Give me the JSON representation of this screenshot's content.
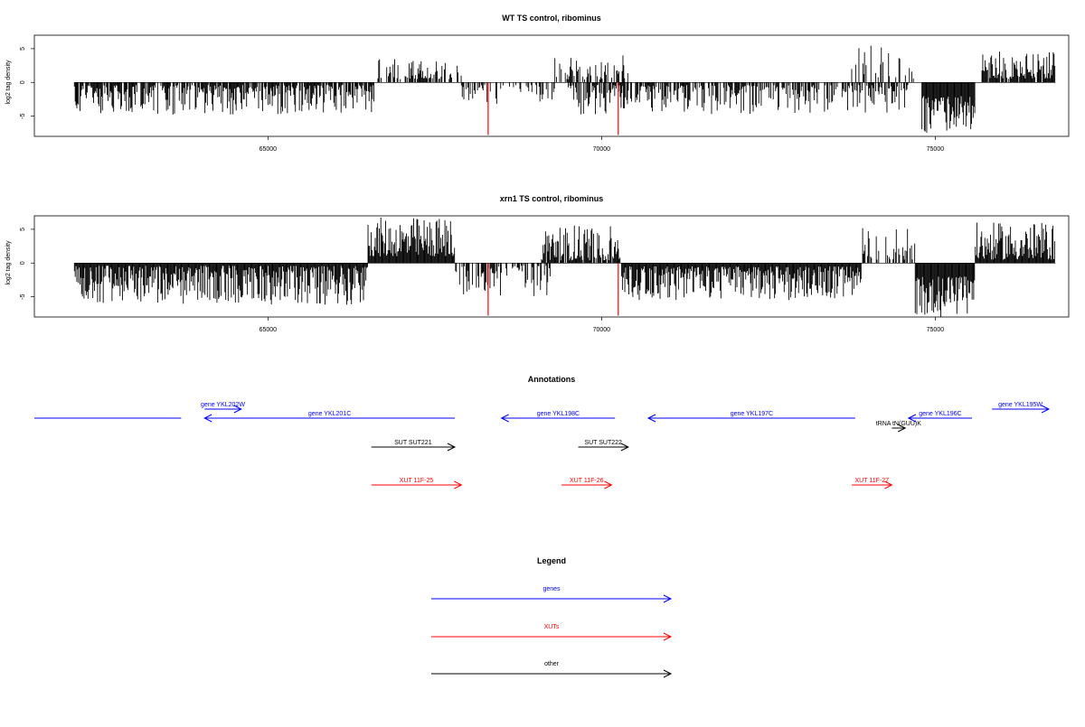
{
  "colors": {
    "gene": "#0000ff",
    "xut": "#ff0000",
    "other": "#000000",
    "axis": "#000000",
    "highlight": "#ff0000"
  },
  "chart_data": [
    {
      "type": "bar",
      "title": "WT TS control, ribominus",
      "ylabel": "log2 tag density",
      "xlim": [
        61500,
        77000
      ],
      "ylim": [
        -8,
        7
      ],
      "x_ticks": [
        65000,
        70000,
        75000
      ],
      "y_ticks": [
        -5,
        0,
        5
      ],
      "grid": false,
      "highlight_bars": [
        {
          "x": 68300,
          "y": -7.8
        },
        {
          "x": 70250,
          "y": -7.8
        }
      ],
      "segments": [
        {
          "from": 62100,
          "to": 66600,
          "sign": -1,
          "min": 0.4,
          "max": 4.8,
          "density": 0.8
        },
        {
          "from": 66600,
          "to": 67900,
          "sign": 1,
          "min": 0.5,
          "max": 3.6,
          "density": 0.7
        },
        {
          "from": 67900,
          "to": 69300,
          "sign": -1,
          "min": 0.4,
          "max": 3.2,
          "density": 0.4
        },
        {
          "from": 69300,
          "to": 70400,
          "sign": 1,
          "min": 0.4,
          "max": 4.0,
          "density": 0.5
        },
        {
          "from": 69500,
          "to": 74600,
          "sign": -1,
          "min": 0.4,
          "max": 4.8,
          "density": 0.65
        },
        {
          "from": 73700,
          "to": 74700,
          "sign": 1,
          "min": 0.5,
          "max": 5.5,
          "density": 0.25
        },
        {
          "from": 74800,
          "to": 75600,
          "sign": -1,
          "min": 2.0,
          "max": 7.5,
          "density": 1.0
        },
        {
          "from": 75700,
          "to": 76800,
          "sign": 1,
          "min": 0.5,
          "max": 4.6,
          "density": 0.9
        }
      ]
    },
    {
      "type": "bar",
      "title": "xrn1 TS control, ribominus",
      "ylabel": "log2 tag density",
      "xlim": [
        61500,
        77000
      ],
      "ylim": [
        -8,
        7
      ],
      "x_ticks": [
        65000,
        70000,
        75000
      ],
      "y_ticks": [
        -5,
        0,
        5
      ],
      "grid": false,
      "highlight_bars": [
        {
          "x": 68300,
          "y": -7.8
        },
        {
          "x": 70250,
          "y": -7.8
        }
      ],
      "segments": [
        {
          "from": 62100,
          "to": 66500,
          "sign": -1,
          "min": 0.4,
          "max": 6.2,
          "density": 1.0
        },
        {
          "from": 66500,
          "to": 67800,
          "sign": 1,
          "min": 1.0,
          "max": 6.8,
          "density": 1.0
        },
        {
          "from": 67800,
          "to": 69300,
          "sign": -1,
          "min": 0.4,
          "max": 5.0,
          "density": 0.5
        },
        {
          "from": 69100,
          "to": 70300,
          "sign": 1,
          "min": 0.4,
          "max": 5.8,
          "density": 0.9
        },
        {
          "from": 70300,
          "to": 73900,
          "sign": -1,
          "min": 0.5,
          "max": 5.5,
          "density": 1.0
        },
        {
          "from": 73900,
          "to": 74700,
          "sign": 1,
          "min": 0.5,
          "max": 5.2,
          "density": 0.4
        },
        {
          "from": 74700,
          "to": 75600,
          "sign": -1,
          "min": 2.0,
          "max": 8.0,
          "density": 1.0
        },
        {
          "from": 75600,
          "to": 76800,
          "sign": 1,
          "min": 0.5,
          "max": 6.0,
          "density": 1.0
        }
      ]
    }
  ],
  "annotations": {
    "title": "Annotations",
    "features": [
      {
        "label": "",
        "type": "gene",
        "start": 61500,
        "end": 63700,
        "strand": "none",
        "row": 1
      },
      {
        "label": "gene YKL202W",
        "type": "gene",
        "start": 64050,
        "end": 64600,
        "strand": "+",
        "row": 0
      },
      {
        "label": "gene YKL201C",
        "type": "gene",
        "start": 64050,
        "end": 67800,
        "strand": "-",
        "row": 1
      },
      {
        "label": "gene YKL198C",
        "type": "gene",
        "start": 68500,
        "end": 70200,
        "strand": "-",
        "row": 1
      },
      {
        "label": "gene YKL197C",
        "type": "gene",
        "start": 70700,
        "end": 73800,
        "strand": "-",
        "row": 1
      },
      {
        "label": "tRNA tN(GUU)K",
        "type": "other",
        "start": 74350,
        "end": 74550,
        "strand": "+",
        "row": 2
      },
      {
        "label": "gene YKL196C",
        "type": "gene",
        "start": 74600,
        "end": 75550,
        "strand": "-",
        "row": 1
      },
      {
        "label": "gene YKL195W",
        "type": "gene",
        "start": 75850,
        "end": 77050,
        "strand": "+",
        "row": 0
      },
      {
        "label": "SUT SUT221",
        "type": "other",
        "start": 66550,
        "end": 67800,
        "strand": "+",
        "row": 3
      },
      {
        "label": "SUT SUT222",
        "type": "other",
        "start": 69650,
        "end": 70400,
        "strand": "+",
        "row": 3
      },
      {
        "label": "XUT 11F-25",
        "type": "xut",
        "start": 66550,
        "end": 67900,
        "strand": "+",
        "row": 4
      },
      {
        "label": "XUT 11F-26",
        "type": "xut",
        "start": 69400,
        "end": 70150,
        "strand": "+",
        "row": 4
      },
      {
        "label": "XUT 11F-27",
        "type": "xut",
        "start": 73750,
        "end": 74350,
        "strand": "+",
        "row": 4
      }
    ]
  },
  "legend": {
    "title": "Legend",
    "items": [
      {
        "label": "genes",
        "type": "gene"
      },
      {
        "label": "XUTs",
        "type": "xut"
      },
      {
        "label": "other",
        "type": "other"
      }
    ]
  }
}
